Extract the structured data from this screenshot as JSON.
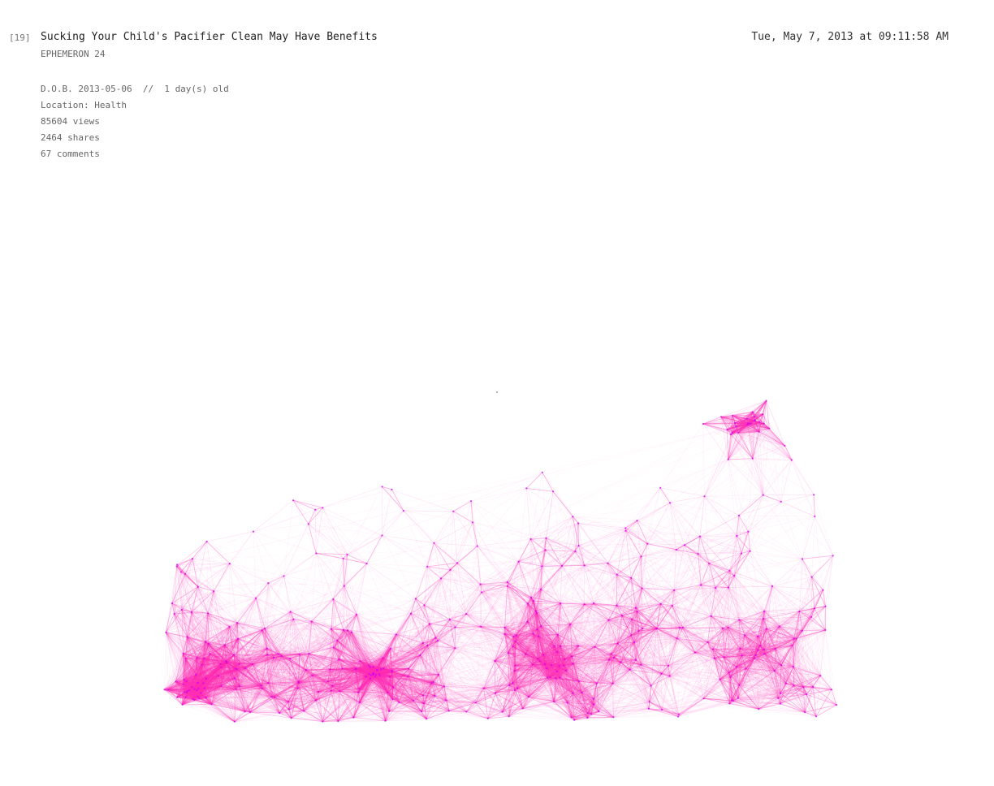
{
  "post": {
    "index": "[19]",
    "title": "Sucking Your Child's Pacifier Clean May Have Benefits",
    "series": "EPHEMERON 24",
    "timestamp": "Tue, May 7, 2013 at 09:11:58 AM",
    "dob_line": "D.O.B. 2013-05-06  //  1 day(s) old",
    "location_line": "Location: Health",
    "views_line": "85604 views",
    "shares_line": "2464 shares",
    "comments_line": "67 comments"
  },
  "visual": {
    "edge_color": "#ff2fb4",
    "node_color": "#c900ff"
  }
}
